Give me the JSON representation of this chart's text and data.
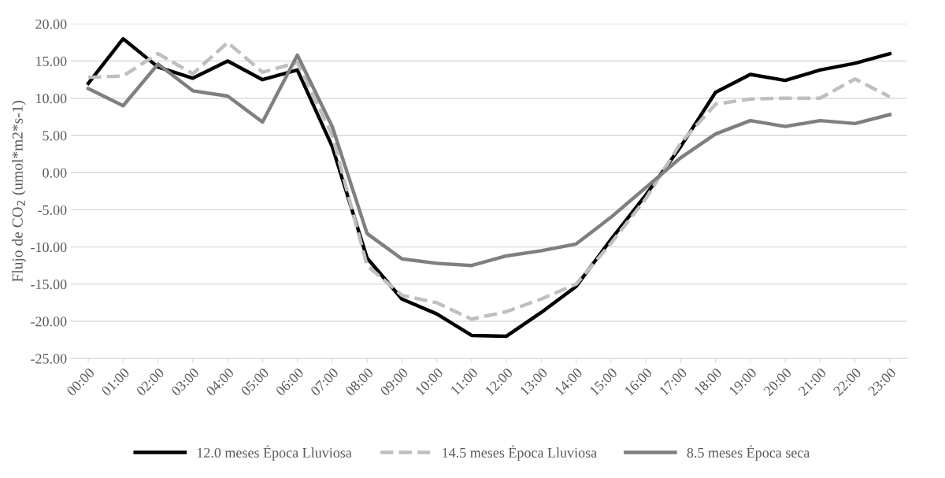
{
  "chart_data": {
    "type": "line",
    "ylabel": "Flujo de CO$_{2}$ (umol*m2*s-1)",
    "categories": [
      "00:00",
      "01:00",
      "02:00",
      "03:00",
      "04:00",
      "05:00",
      "06:00",
      "07:00",
      "08:00",
      "09:00",
      "10:00",
      "11:00",
      "12:00",
      "13:00",
      "14:00",
      "15:00",
      "16:00",
      "17:00",
      "18:00",
      "19:00",
      "20:00",
      "21:00",
      "22:00",
      "23:00"
    ],
    "series": [
      {
        "name": "12.0 meses Época Lluviosa",
        "color": "#000000",
        "line_style": "solid",
        "values": [
          12.0,
          18.0,
          14.2,
          12.7,
          15.0,
          12.5,
          13.8,
          3.5,
          -11.5,
          -17.0,
          -19.0,
          -21.9,
          -22.0,
          -18.8,
          -15.3,
          -9.0,
          -3.0,
          3.5,
          10.8,
          13.2,
          12.4,
          13.8,
          14.7,
          16.0
        ]
      },
      {
        "name": "14.5 meses Época Lluviosa",
        "color": "#bfbfbf",
        "line_style": "dashed",
        "values": [
          12.8,
          13.0,
          16.0,
          13.3,
          17.5,
          13.5,
          14.8,
          5.0,
          -12.5,
          -16.5,
          -17.5,
          -19.7,
          -18.7,
          -17.0,
          -15.0,
          -9.5,
          -3.5,
          4.0,
          9.2,
          9.9,
          10.0,
          10.0,
          12.6,
          10.2
        ]
      },
      {
        "name": "8.5 meses Época seca",
        "color": "#7f7f7f",
        "line_style": "solid",
        "values": [
          11.3,
          9.0,
          14.6,
          11.0,
          10.3,
          6.8,
          15.8,
          6.2,
          -8.2,
          -11.6,
          -12.2,
          -12.5,
          -11.2,
          -10.5,
          -9.6,
          -6.0,
          -2.0,
          2.0,
          5.2,
          7.0,
          6.2,
          7.0,
          6.6,
          7.8
        ]
      }
    ],
    "ylim": [
      -25,
      20
    ],
    "yticks": [
      {
        "value": -25,
        "label": "-25.00"
      },
      {
        "value": -20,
        "label": "-20.00"
      },
      {
        "value": -15,
        "label": "-15.00"
      },
      {
        "value": -10,
        "label": "-10.00"
      },
      {
        "value": -5,
        "label": "-5.00"
      },
      {
        "value": 0,
        "label": "0.00"
      },
      {
        "value": 5,
        "label": "5.00"
      },
      {
        "value": 10,
        "label": "10.00"
      },
      {
        "value": 15,
        "label": "15.00"
      },
      {
        "value": 20,
        "label": "20.00"
      }
    ],
    "grid": "y",
    "legend": "bottom",
    "marker": "none"
  }
}
